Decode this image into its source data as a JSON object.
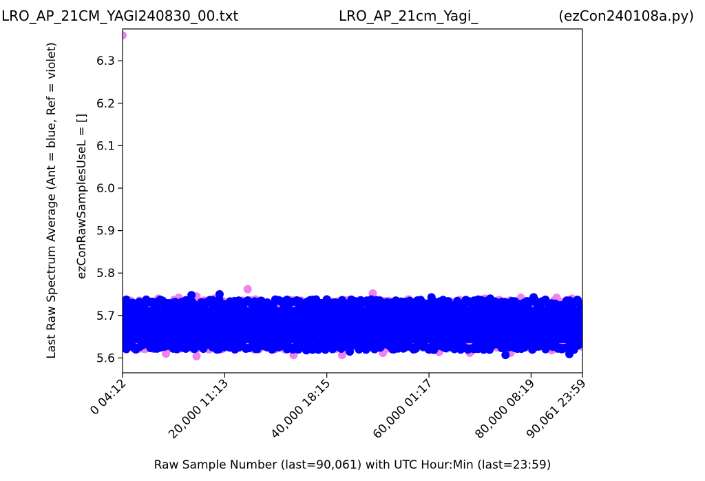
{
  "chart_data": {
    "type": "scatter",
    "title_left": "LRO_AP_21CM_YAGI240830_00.txt",
    "title_center": "LRO_AP_21cm_Yagi_",
    "title_right": "(ezCon240108a.py)",
    "xlabel": "Raw Sample Number (last=90,061) with UTC Hour:Min (last=23:59)",
    "ylabel_outer": "Last Raw Spectrum Average   (Ant = blue, Ref = violet)",
    "ylabel_inner": "ezConRawSamplesUseL = []",
    "xlim": [
      0,
      90061
    ],
    "ylim": [
      5.565,
      6.375
    ],
    "x_ticks": [
      {
        "value": 0,
        "label": "0  04:12"
      },
      {
        "value": 20000,
        "label": "20,000  11:13"
      },
      {
        "value": 40000,
        "label": "40,000  18:15"
      },
      {
        "value": 60000,
        "label": "60,000  01:17"
      },
      {
        "value": 80000,
        "label": "80,000  08:19"
      },
      {
        "value": 90061,
        "label": "90,061  23:59"
      }
    ],
    "y_ticks": [
      {
        "value": 5.6,
        "label": "5.6"
      },
      {
        "value": 5.7,
        "label": "5.7"
      },
      {
        "value": 5.8,
        "label": "5.8"
      },
      {
        "value": 5.9,
        "label": "5.9"
      },
      {
        "value": 6.0,
        "label": "6.0"
      },
      {
        "value": 6.1,
        "label": "6.1"
      },
      {
        "value": 6.2,
        "label": "6.2"
      },
      {
        "value": 6.3,
        "label": "6.3"
      }
    ],
    "series": [
      {
        "color": "#ee82ee",
        "band": {
          "low": 5.64,
          "high": 5.715
        },
        "points": [
          {
            "x": 0,
            "y": 6.36
          },
          {
            "x": 24500,
            "y": 5.762
          },
          {
            "x": 49000,
            "y": 5.752
          },
          {
            "x": 1500,
            "y": 5.735
          },
          {
            "x": 7000,
            "y": 5.74
          },
          {
            "x": 11000,
            "y": 5.742
          },
          {
            "x": 14500,
            "y": 5.745
          },
          {
            "x": 18000,
            "y": 5.74
          },
          {
            "x": 26000,
            "y": 5.738
          },
          {
            "x": 35000,
            "y": 5.735
          },
          {
            "x": 44000,
            "y": 5.735
          },
          {
            "x": 56000,
            "y": 5.738
          },
          {
            "x": 63000,
            "y": 5.735
          },
          {
            "x": 71000,
            "y": 5.74
          },
          {
            "x": 78000,
            "y": 5.742
          },
          {
            "x": 85000,
            "y": 5.742
          },
          {
            "x": 88000,
            "y": 5.74
          },
          {
            "x": 8500,
            "y": 5.61
          },
          {
            "x": 14500,
            "y": 5.604
          },
          {
            "x": 33500,
            "y": 5.607
          },
          {
            "x": 43000,
            "y": 5.607
          },
          {
            "x": 51000,
            "y": 5.612
          },
          {
            "x": 62000,
            "y": 5.614
          },
          {
            "x": 68000,
            "y": 5.612
          },
          {
            "x": 76000,
            "y": 5.612
          },
          {
            "x": 84000,
            "y": 5.618
          }
        ]
      },
      {
        "color": "#0000ff",
        "band": {
          "low": 5.635,
          "high": 5.72
        },
        "points": [
          {
            "x": 13500,
            "y": 5.748
          },
          {
            "x": 19000,
            "y": 5.75
          },
          {
            "x": 60500,
            "y": 5.743
          },
          {
            "x": 80500,
            "y": 5.743
          },
          {
            "x": 72000,
            "y": 5.74
          },
          {
            "x": 30000,
            "y": 5.735
          },
          {
            "x": 40000,
            "y": 5.738
          },
          {
            "x": 2000,
            "y": 5.73
          },
          {
            "x": 87000,
            "y": 5.735
          },
          {
            "x": 36000,
            "y": 5.618
          },
          {
            "x": 44500,
            "y": 5.615
          },
          {
            "x": 75000,
            "y": 5.607
          },
          {
            "x": 87500,
            "y": 5.609
          },
          {
            "x": 22000,
            "y": 5.62
          },
          {
            "x": 57000,
            "y": 5.62
          },
          {
            "x": 66000,
            "y": 5.622
          },
          {
            "x": 10000,
            "y": 5.625
          }
        ]
      }
    ]
  }
}
